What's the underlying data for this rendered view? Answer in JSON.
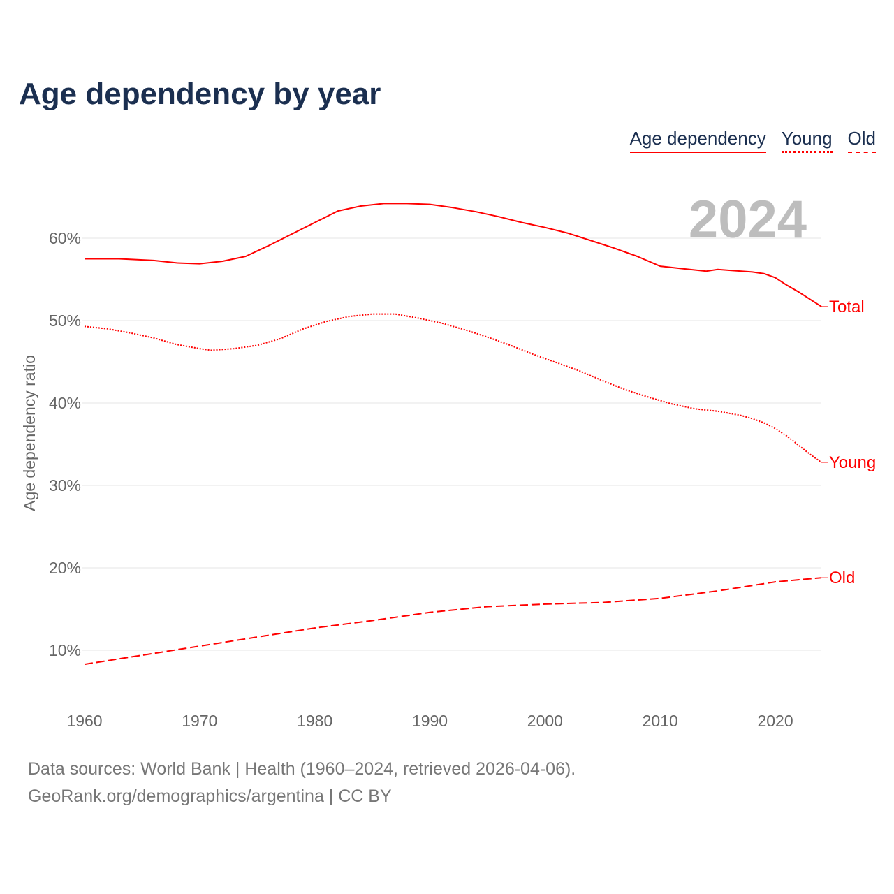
{
  "chart_data": {
    "type": "line",
    "title": "Age dependency by year",
    "ylabel": "Age dependency ratio",
    "xlabel": "",
    "watermark_year": "2024",
    "xlim": [
      1960,
      2024
    ],
    "ylim": [
      5,
      66
    ],
    "x_ticks": [
      1960,
      1970,
      1980,
      1990,
      2000,
      2010,
      2020
    ],
    "x_tick_labels": [
      "1960",
      "1970",
      "1980",
      "1990",
      "2000",
      "2010",
      "2020"
    ],
    "y_ticks": [
      10,
      20,
      30,
      40,
      50,
      60
    ],
    "y_tick_labels": [
      "10%",
      "20%",
      "30%",
      "40%",
      "50%",
      "60%"
    ],
    "grid": true,
    "legend": {
      "placement": "top-right",
      "items": [
        "Age dependency",
        "Young",
        "Old"
      ]
    },
    "color": "#ff0000",
    "series": [
      {
        "name": "Age dependency",
        "end_label": "Total",
        "style": "solid",
        "x": [
          1960,
          1963,
          1966,
          1968,
          1970,
          1972,
          1974,
          1976,
          1978,
          1980,
          1982,
          1984,
          1986,
          1988,
          1990,
          1992,
          1994,
          1996,
          1998,
          2000,
          2002,
          2004,
          2006,
          2008,
          2010,
          2012,
          2014,
          2015,
          2016,
          2018,
          2019,
          2020,
          2021,
          2022,
          2023,
          2024
        ],
        "values": [
          57.5,
          57.5,
          57.3,
          57.0,
          56.9,
          57.2,
          57.8,
          59.1,
          60.5,
          61.9,
          63.3,
          63.9,
          64.2,
          64.2,
          64.1,
          63.7,
          63.2,
          62.6,
          61.9,
          61.3,
          60.6,
          59.7,
          58.8,
          57.8,
          56.6,
          56.3,
          56.0,
          56.2,
          56.1,
          55.9,
          55.7,
          55.2,
          54.3,
          53.5,
          52.6,
          51.7
        ]
      },
      {
        "name": "Young",
        "end_label": "Young",
        "style": "dotted",
        "x": [
          1960,
          1962,
          1964,
          1966,
          1968,
          1970,
          1971,
          1973,
          1975,
          1977,
          1979,
          1981,
          1983,
          1985,
          1987,
          1989,
          1991,
          1993,
          1995,
          1997,
          1999,
          2001,
          2003,
          2005,
          2007,
          2009,
          2011,
          2013,
          2015,
          2017,
          2018,
          2019,
          2020,
          2021,
          2022,
          2023,
          2024
        ],
        "values": [
          49.3,
          49.0,
          48.5,
          47.9,
          47.1,
          46.6,
          46.4,
          46.6,
          47.0,
          47.8,
          49.0,
          49.9,
          50.5,
          50.8,
          50.8,
          50.3,
          49.7,
          48.9,
          48.0,
          47.0,
          45.9,
          44.9,
          43.9,
          42.7,
          41.6,
          40.7,
          39.9,
          39.3,
          39.0,
          38.5,
          38.1,
          37.6,
          36.9,
          36.0,
          34.9,
          33.8,
          32.8
        ]
      },
      {
        "name": "Old",
        "end_label": "Old",
        "style": "dashed",
        "x": [
          1960,
          1965,
          1970,
          1975,
          1980,
          1985,
          1990,
          1995,
          2000,
          2005,
          2010,
          2015,
          2020,
          2024
        ],
        "values": [
          8.3,
          9.4,
          10.5,
          11.6,
          12.7,
          13.6,
          14.6,
          15.3,
          15.6,
          15.8,
          16.3,
          17.2,
          18.3,
          18.8
        ]
      }
    ]
  },
  "footer": {
    "sources": "Data sources: World Bank | Health (1960–2024, retrieved 2026-04-06).",
    "credit": "GeoRank.org/demographics/argentina | CC BY"
  }
}
